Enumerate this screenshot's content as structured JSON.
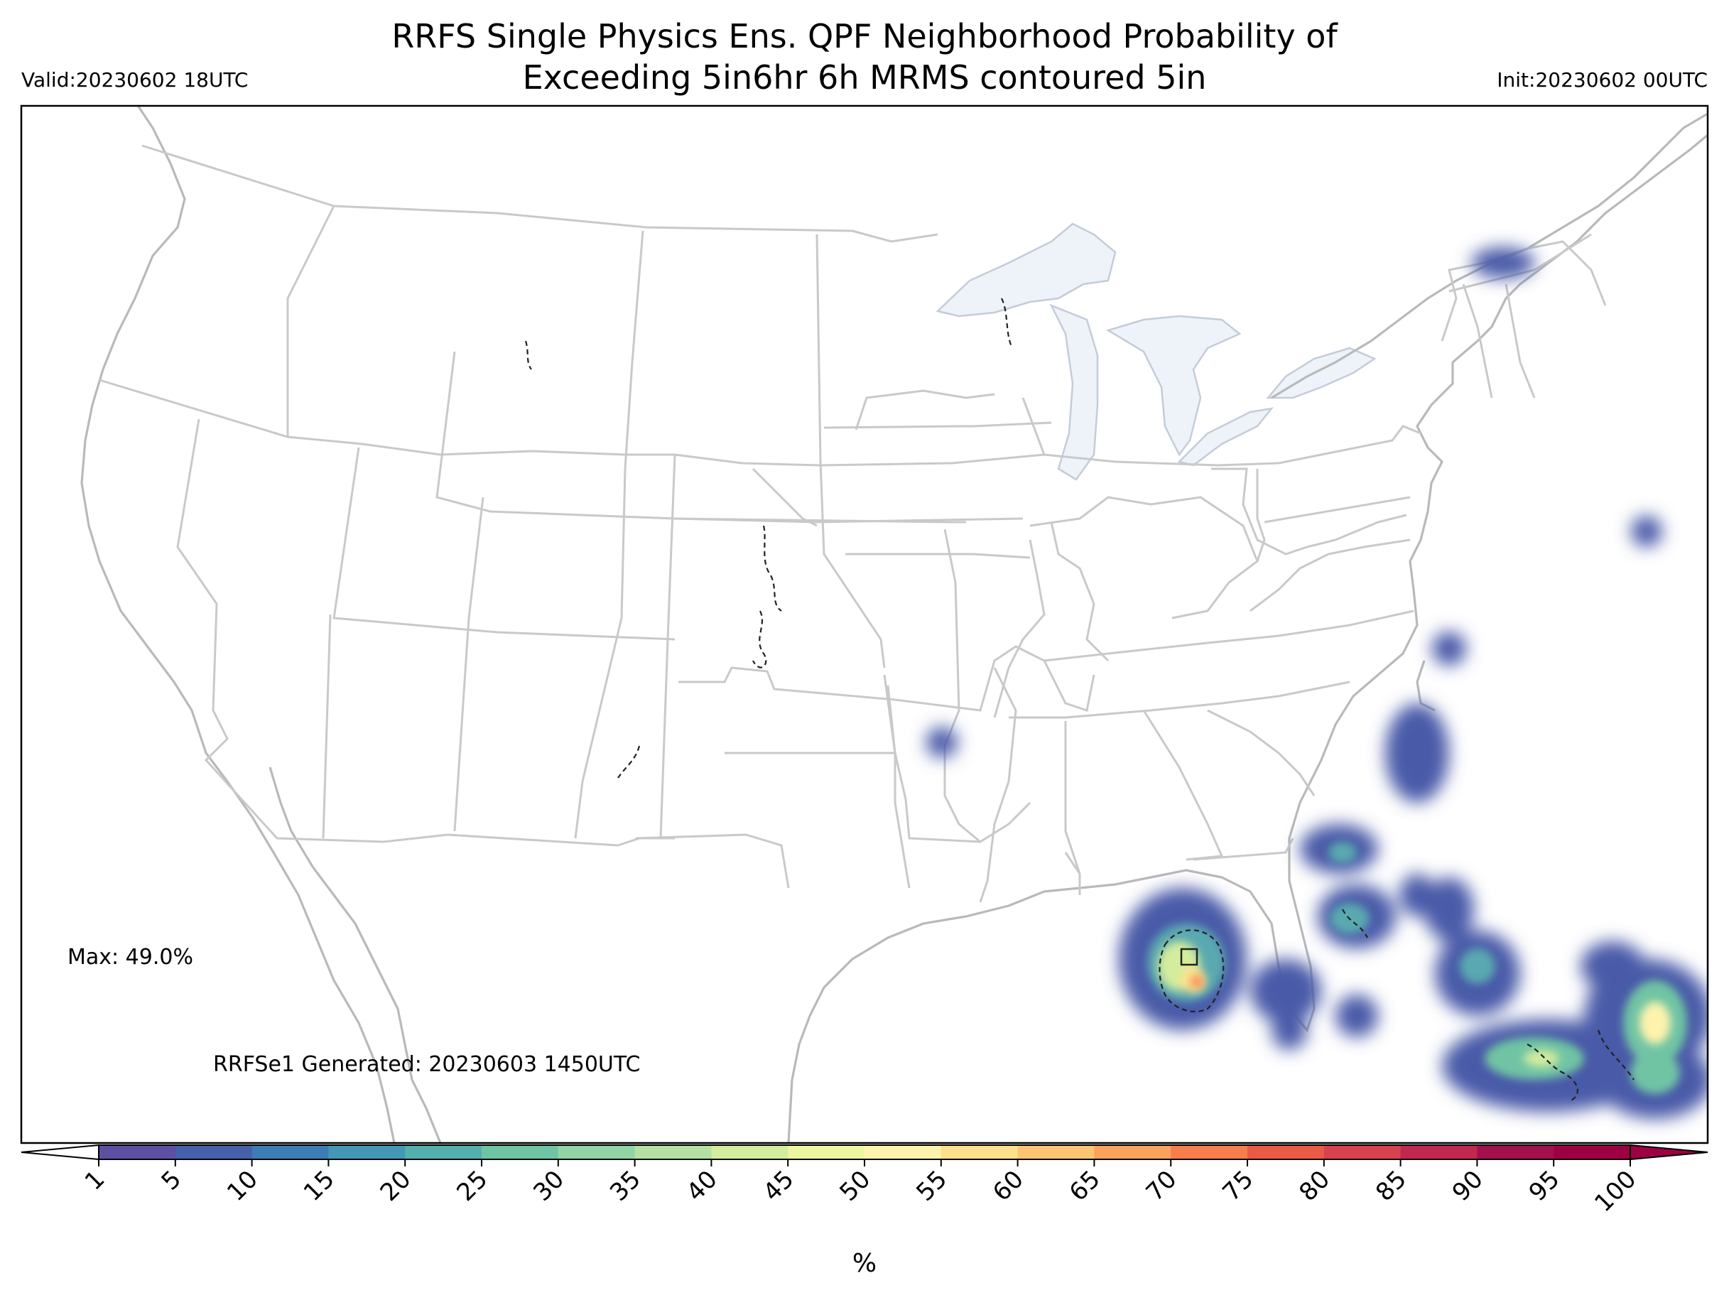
{
  "header": {
    "title_line1": "RRFS Single Physics Ens. QPF Neighborhood Probability of",
    "title_line2": "Exceeding 5in6hr 6h MRMS contoured 5in",
    "valid": "Valid:20230602 18UTC",
    "init": "Init:20230602 00UTC"
  },
  "map": {
    "max_label": "Max: 49.0%",
    "generated_label": "RRFSe1 Generated: 20230603 1450UTC"
  },
  "colorbar": {
    "ticks": [
      "1",
      "5",
      "10",
      "15",
      "20",
      "25",
      "30",
      "35",
      "40",
      "45",
      "50",
      "55",
      "60",
      "65",
      "70",
      "75",
      "80",
      "85",
      "90",
      "95",
      "100"
    ],
    "colors": [
      "#5e4fa2",
      "#4561ab",
      "#3e7cb6",
      "#4398b5",
      "#54b0ad",
      "#6fc4a4",
      "#93d4a4",
      "#b4e0a2",
      "#d3ec9d",
      "#ecf6a0",
      "#fdf3ac",
      "#fde08c",
      "#fdc573",
      "#fba35d",
      "#f67d4c",
      "#ea5a45",
      "#d8414d",
      "#c1284f",
      "#a3104b",
      "#9e0142"
    ],
    "unit": "%"
  },
  "chart_data": {
    "type": "map",
    "legend_placement": "bottom",
    "variable": "neighborhood probability of exceeding 5in in 6h",
    "max_percent": 49.0,
    "prob_regions": [
      {
        "area": "central Texas / Arkansas border",
        "peak_percent": 5
      },
      {
        "area": "eastern Gulf of Mexico (Florida Big Bend region)",
        "peak_percent": 49
      },
      {
        "area": "Florida peninsula / Atlantic",
        "peak_percent": 25
      },
      {
        "area": "Bahamas",
        "peak_percent": 45
      },
      {
        "area": "off North Carolina coast",
        "peak_percent": 5
      },
      {
        "area": "western Atlantic",
        "peak_percent": 5
      },
      {
        "area": "northern Maine",
        "peak_percent": 10
      }
    ]
  }
}
